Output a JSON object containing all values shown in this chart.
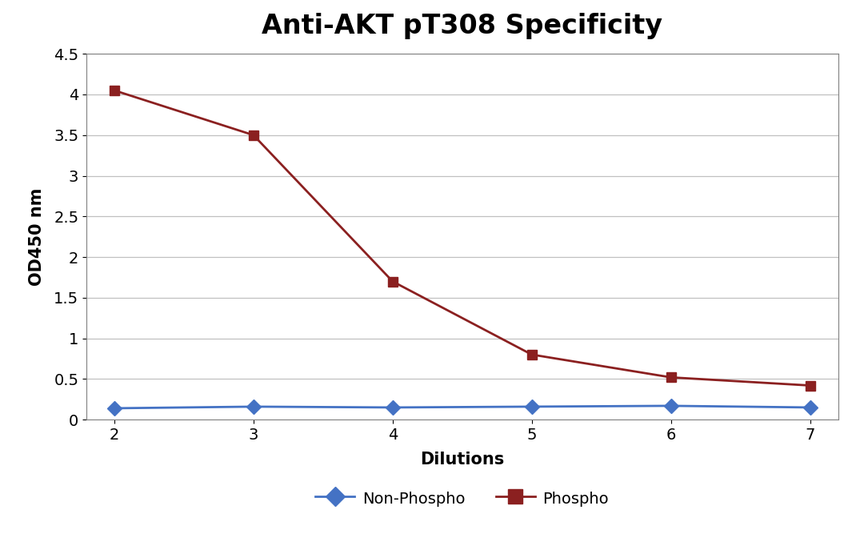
{
  "title": "Anti-AKT pT308 Specificity",
  "xlabel": "Dilutions",
  "ylabel": "OD450 nm",
  "x_values": [
    2,
    3,
    4,
    5,
    6,
    7
  ],
  "phospho_y": [
    4.05,
    3.5,
    1.7,
    0.8,
    0.52,
    0.42
  ],
  "nonphospho_y": [
    0.14,
    0.16,
    0.15,
    0.16,
    0.17,
    0.15
  ],
  "phospho_color": "#8B2020",
  "nonphospho_color": "#4472C4",
  "ylim": [
    0,
    4.5
  ],
  "xlim": [
    1.8,
    7.2
  ],
  "ytick_values": [
    0,
    0.5,
    1,
    1.5,
    2,
    2.5,
    3,
    3.5,
    4,
    4.5
  ],
  "ytick_labels": [
    "0",
    "0.5",
    "1",
    "1.5",
    "2",
    "2.5",
    "3",
    "3.5",
    "4",
    "4.5"
  ],
  "xticks": [
    2,
    3,
    4,
    5,
    6,
    7
  ],
  "bg_color": "#FFFFFF",
  "plot_bg_color": "#FFFFFF",
  "title_fontsize": 24,
  "axis_label_fontsize": 15,
  "tick_fontsize": 14,
  "legend_fontsize": 14,
  "grid_color": "#C0C0C0",
  "spine_color": "#808080"
}
